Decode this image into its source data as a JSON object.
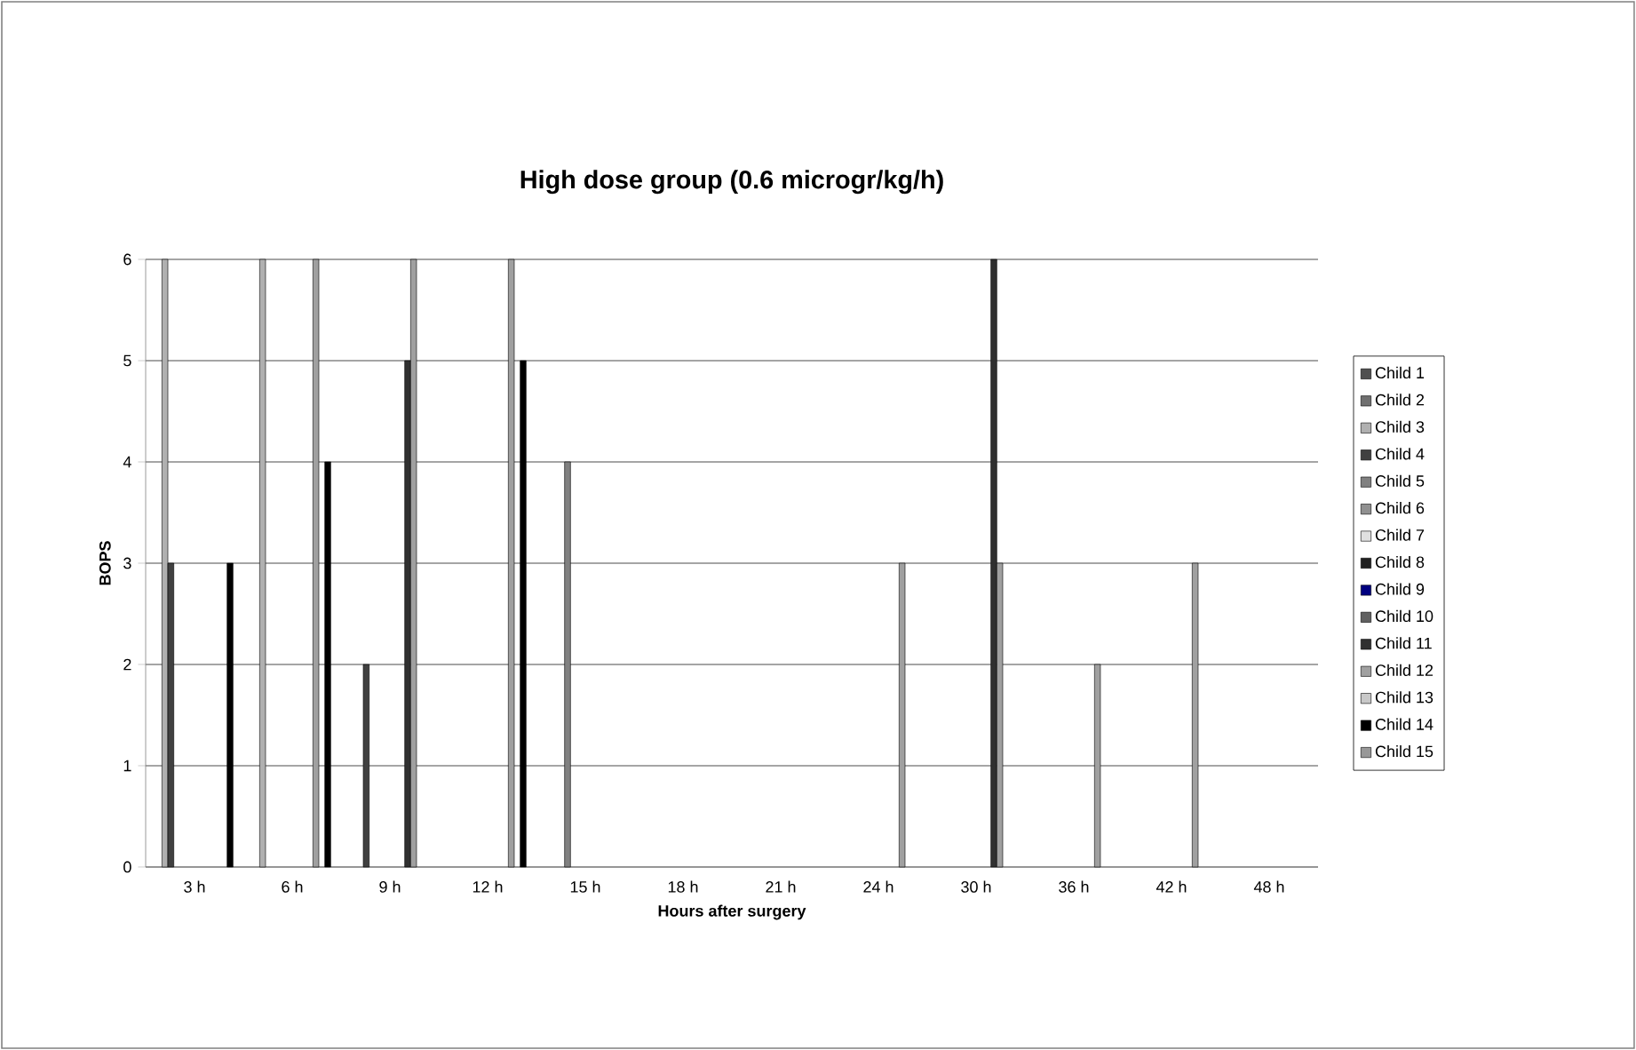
{
  "chart_data": {
    "type": "bar",
    "title": "High dose group (0.6 microgr/kg/h)",
    "xlabel": "Hours after surgery",
    "ylabel": "BOPS",
    "categories": [
      "3 h",
      "6 h",
      "9 h",
      "12 h",
      "15 h",
      "18 h",
      "21 h",
      "24 h",
      "30 h",
      "36 h",
      "42 h",
      "48 h"
    ],
    "ylim": [
      0,
      6
    ],
    "yticks": [
      0,
      1,
      2,
      3,
      4,
      5,
      6
    ],
    "grid": "y",
    "legend": "right",
    "series": [
      {
        "name": "Child 1",
        "color": "#505050",
        "values": [
          null,
          null,
          null,
          null,
          null,
          null,
          null,
          null,
          null,
          null,
          null,
          null
        ]
      },
      {
        "name": "Child 2",
        "color": "#707070",
        "values": [
          null,
          null,
          null,
          null,
          null,
          null,
          null,
          null,
          null,
          null,
          null,
          null
        ]
      },
      {
        "name": "Child 3",
        "color": "#b0b0b0",
        "values": [
          6,
          6,
          null,
          null,
          null,
          null,
          null,
          null,
          null,
          null,
          null,
          null
        ]
      },
      {
        "name": "Child 4",
        "color": "#404040",
        "values": [
          3,
          null,
          2,
          null,
          null,
          null,
          null,
          null,
          null,
          null,
          null,
          null
        ]
      },
      {
        "name": "Child 5",
        "color": "#808080",
        "values": [
          null,
          null,
          null,
          null,
          4,
          null,
          null,
          null,
          null,
          null,
          null,
          null
        ]
      },
      {
        "name": "Child 6",
        "color": "#909090",
        "values": [
          null,
          null,
          null,
          null,
          null,
          null,
          null,
          null,
          null,
          null,
          null,
          null
        ]
      },
      {
        "name": "Child 7",
        "color": "#e0e0e0",
        "values": [
          null,
          null,
          null,
          null,
          null,
          null,
          null,
          null,
          null,
          null,
          null,
          null
        ]
      },
      {
        "name": "Child 8",
        "color": "#202020",
        "values": [
          null,
          null,
          null,
          null,
          null,
          null,
          null,
          null,
          null,
          null,
          null,
          null
        ]
      },
      {
        "name": "Child 9",
        "color": "#000080",
        "values": [
          null,
          null,
          null,
          null,
          null,
          null,
          null,
          null,
          null,
          null,
          null,
          null
        ]
      },
      {
        "name": "Child 10",
        "color": "#606060",
        "values": [
          null,
          null,
          null,
          null,
          null,
          null,
          null,
          null,
          null,
          null,
          null,
          null
        ]
      },
      {
        "name": "Child 11",
        "color": "#303030",
        "values": [
          null,
          null,
          5,
          null,
          null,
          null,
          null,
          null,
          6,
          null,
          null,
          null
        ]
      },
      {
        "name": "Child 12",
        "color": "#a0a0a0",
        "values": [
          null,
          6,
          6,
          6,
          null,
          null,
          null,
          3,
          3,
          2,
          3,
          null
        ]
      },
      {
        "name": "Child 13",
        "color": "#c8c8c8",
        "values": [
          null,
          null,
          null,
          null,
          null,
          null,
          null,
          null,
          null,
          null,
          null,
          null
        ]
      },
      {
        "name": "Child 14",
        "color": "#000000",
        "values": [
          3,
          4,
          null,
          5,
          null,
          null,
          null,
          null,
          null,
          null,
          null,
          null
        ]
      },
      {
        "name": "Child 15",
        "color": "#989898",
        "values": [
          null,
          null,
          null,
          null,
          null,
          null,
          null,
          null,
          null,
          null,
          null,
          null
        ]
      }
    ]
  }
}
